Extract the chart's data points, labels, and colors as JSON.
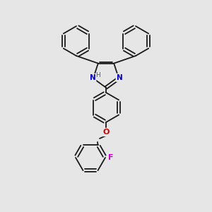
{
  "bg_color": "#e6e6e6",
  "bond_color": "#1a1a1a",
  "N_color": "#0000cc",
  "H_color": "#008080",
  "O_color": "#cc0000",
  "F_color": "#cc00cc",
  "figsize": [
    3.0,
    3.0
  ],
  "dpi": 100,
  "lw": 1.3,
  "ring_r": 20,
  "xlim": [
    0,
    300
  ],
  "ylim": [
    0,
    300
  ]
}
